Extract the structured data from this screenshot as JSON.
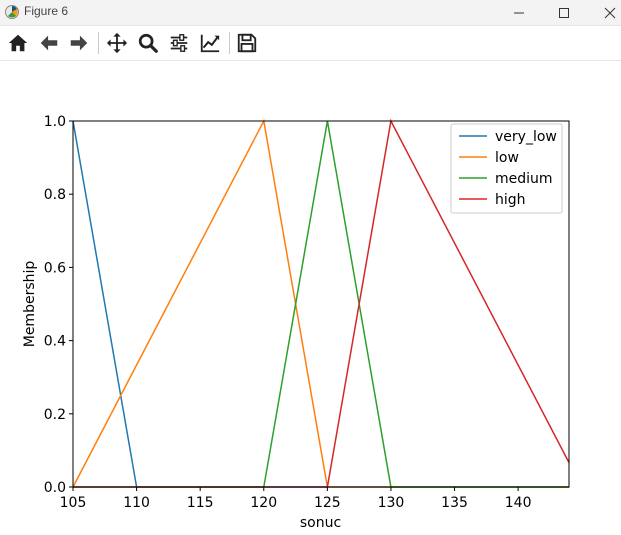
{
  "window": {
    "title": "Figure 6"
  },
  "toolbar": {
    "buttons": [
      "home-icon",
      "back-icon",
      "forward-icon",
      "pan-icon",
      "zoom-icon",
      "configure-subplots-icon",
      "edit-axis-icon",
      "save-icon"
    ]
  },
  "chart_data": {
    "type": "line",
    "xlabel": "sonuc",
    "ylabel": "Membership",
    "xlim": [
      105,
      144
    ],
    "ylim": [
      0,
      1
    ],
    "xticks": [
      "105",
      "110",
      "115",
      "120",
      "125",
      "130",
      "135",
      "140"
    ],
    "yticks": [
      "0.0",
      "0.2",
      "0.4",
      "0.6",
      "0.8",
      "1.0"
    ],
    "grid": false,
    "legend_position": "top-right",
    "series": [
      {
        "name": "very_low",
        "color": "#1f77b4",
        "x": [
          105,
          110,
          144
        ],
        "y": [
          1,
          0,
          0
        ]
      },
      {
        "name": "low",
        "color": "#ff7f0e",
        "x": [
          105,
          120,
          125,
          144
        ],
        "y": [
          0,
          1,
          0,
          0
        ]
      },
      {
        "name": "medium",
        "color": "#2ca02c",
        "x": [
          105,
          120,
          125,
          130,
          144
        ],
        "y": [
          0,
          0,
          1,
          0,
          0
        ]
      },
      {
        "name": "high",
        "color": "#d62728",
        "x": [
          105,
          125,
          130,
          144
        ],
        "y": [
          0,
          0,
          1,
          0.0667
        ]
      }
    ]
  }
}
